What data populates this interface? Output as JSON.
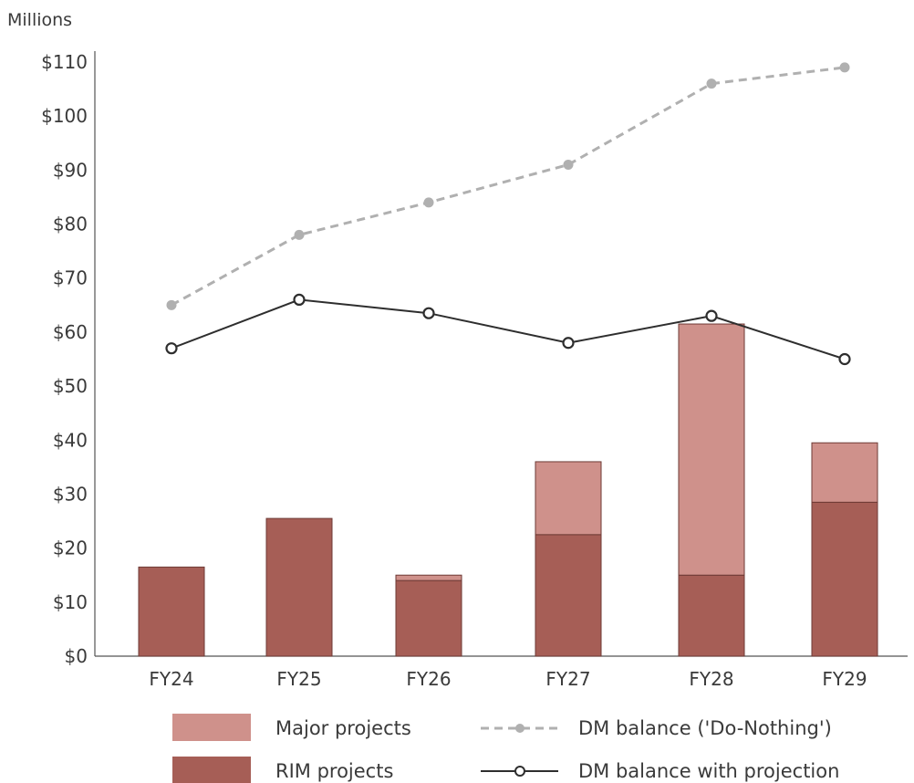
{
  "chart_data": {
    "type": "bar",
    "unit_label": "Millions",
    "categories": [
      "FY24",
      "FY25",
      "FY26",
      "FY27",
      "FY28",
      "FY29"
    ],
    "ylim": [
      0,
      110
    ],
    "yticks": [
      0,
      10,
      20,
      30,
      40,
      50,
      60,
      70,
      80,
      90,
      100,
      110
    ],
    "ytick_labels": [
      "$0",
      "$10",
      "$20",
      "$30",
      "$40",
      "$50",
      "$60",
      "$70",
      "$80",
      "$90",
      "$100",
      "$110"
    ],
    "grid": false,
    "legend_position": "bottom",
    "series": [
      {
        "name": "RIM projects",
        "kind": "bar",
        "stack": "total",
        "color": "#a65e56",
        "values": [
          16.5,
          25.5,
          14,
          22.5,
          15,
          28.5
        ]
      },
      {
        "name": "Major projects",
        "kind": "bar",
        "stack": "total",
        "color": "#cf918b",
        "values": [
          0,
          0,
          1,
          13.5,
          46.5,
          11
        ]
      },
      {
        "name": "DM balance ('Do-Nothing')",
        "kind": "line",
        "style": "dashed",
        "color": "#b0b0b0",
        "values": [
          65,
          78,
          84,
          91,
          106,
          109
        ]
      },
      {
        "name": "DM balance with projection",
        "kind": "line",
        "style": "solid",
        "color": "#2e2e2e",
        "values": [
          57,
          66,
          63.5,
          58,
          63,
          55
        ]
      }
    ]
  }
}
